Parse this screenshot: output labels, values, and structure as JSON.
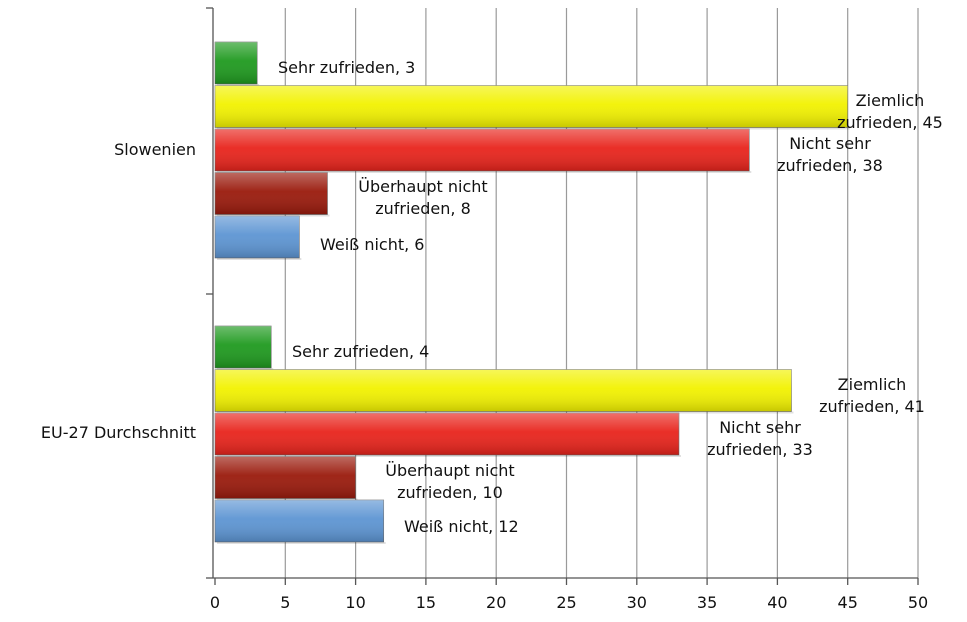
{
  "chart_data": {
    "type": "bar",
    "orientation": "horizontal",
    "title": "",
    "xlabel": "",
    "ylabel": "",
    "xlim": [
      0,
      50
    ],
    "x_ticks": [
      0,
      5,
      10,
      15,
      20,
      25,
      30,
      35,
      40,
      45,
      50
    ],
    "grid": "vertical",
    "legend": "none",
    "categories": [
      "Slowenien",
      "EU-27 Durchschnitt"
    ],
    "series": [
      {
        "name": "Sehr zufrieden",
        "color": "#1f9a1f",
        "values": [
          3,
          4
        ],
        "labels": [
          [
            "Sehr zufrieden, 3"
          ],
          [
            "Sehr zufrieden, 4"
          ]
        ]
      },
      {
        "name": "Ziemlich zufrieden",
        "color": "#f2f200",
        "values": [
          45,
          41
        ],
        "labels": [
          [
            "Ziemlich",
            "zufrieden, 45"
          ],
          [
            "Ziemlich",
            "zufrieden, 41"
          ]
        ]
      },
      {
        "name": "Nicht sehr zufrieden",
        "color": "#e8241c",
        "values": [
          38,
          33
        ],
        "labels": [
          [
            "Nicht sehr",
            "zufrieden, 38"
          ],
          [
            "Nicht sehr",
            "zufrieden, 33"
          ]
        ]
      },
      {
        "name": "Überhaupt nicht zufrieden",
        "color": "#9a1a0c",
        "values": [
          8,
          10
        ],
        "labels": [
          [
            "Überhaupt nicht",
            "zufrieden, 8"
          ],
          [
            "Überhaupt nicht",
            "zufrieden, 10"
          ]
        ]
      },
      {
        "name": "Weiß nicht",
        "color": "#5d95d3",
        "values": [
          6,
          12
        ],
        "labels": [
          [
            "Weiß nicht, 6"
          ],
          [
            "Weiß nicht, 12"
          ]
        ]
      }
    ]
  }
}
